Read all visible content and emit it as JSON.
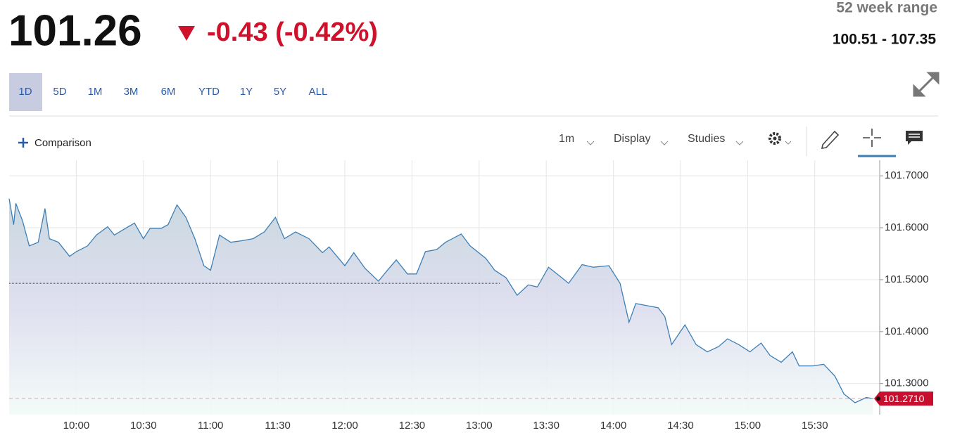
{
  "header": {
    "price": "101.26",
    "change": "-0.43 (-0.42%)",
    "range_label": "52 week range",
    "range": "100.51 - 107.35"
  },
  "tabs": [
    "1D",
    "5D",
    "1M",
    "3M",
    "6M",
    "YTD",
    "1Y",
    "5Y",
    "ALL"
  ],
  "selected_tab": 0,
  "toolbar": {
    "comparison": "Comparison",
    "interval": "1m",
    "display": "Display",
    "studies": "Studies"
  },
  "chart_data": {
    "type": "line",
    "x": [
      "09:30",
      "09:32",
      "09:33",
      "09:36",
      "09:39",
      "09:43",
      "09:46",
      "09:48",
      "09:52",
      "09:57",
      "10:00",
      "10:05",
      "10:09",
      "10:14",
      "10:17",
      "10:22",
      "10:26",
      "10:30",
      "10:33",
      "10:38",
      "10:41",
      "10:45",
      "10:49",
      "10:53",
      "10:57",
      "11:00",
      "11:04",
      "11:09",
      "11:14",
      "11:19",
      "11:24",
      "11:29",
      "11:33",
      "11:38",
      "11:44",
      "11:50",
      "11:53",
      "12:00",
      "12:04",
      "12:09",
      "12:15",
      "12:19",
      "12:23",
      "12:28",
      "12:32",
      "12:36",
      "12:41",
      "12:45",
      "12:52",
      "12:56",
      "13:03",
      "13:07",
      "13:12",
      "13:17",
      "13:22",
      "13:26",
      "13:31",
      "13:36",
      "13:40",
      "13:46",
      "13:51",
      "13:58",
      "14:03",
      "14:07",
      "14:10",
      "14:15",
      "14:20",
      "14:23",
      "14:26",
      "14:32",
      "14:37",
      "14:42",
      "14:47",
      "14:51",
      "14:56",
      "15:01",
      "15:06",
      "15:10",
      "15:15",
      "15:20",
      "15:23",
      "15:29",
      "15:34",
      "15:39",
      "15:43",
      "15:48",
      "15:53",
      "15:56"
    ],
    "values": [
      101.656,
      101.606,
      101.647,
      101.613,
      101.565,
      101.572,
      101.637,
      101.579,
      101.572,
      101.545,
      101.554,
      101.565,
      101.586,
      101.602,
      101.586,
      101.599,
      101.609,
      101.579,
      101.599,
      101.599,
      101.606,
      101.644,
      101.62,
      101.579,
      101.527,
      101.518,
      101.586,
      101.572,
      101.575,
      101.579,
      101.592,
      101.62,
      101.579,
      101.592,
      101.579,
      101.552,
      101.563,
      101.527,
      101.552,
      101.522,
      101.497,
      101.518,
      101.538,
      101.511,
      101.511,
      101.554,
      101.558,
      101.572,
      101.588,
      101.565,
      101.541,
      101.518,
      101.504,
      101.47,
      101.49,
      101.486,
      101.524,
      101.507,
      101.493,
      101.529,
      101.524,
      101.527,
      101.493,
      101.418,
      101.454,
      101.45,
      101.446,
      101.429,
      101.375,
      101.413,
      101.375,
      101.361,
      101.371,
      101.386,
      101.375,
      101.361,
      101.378,
      101.354,
      101.341,
      101.361,
      101.334,
      101.334,
      101.337,
      101.314,
      101.28,
      101.263,
      101.273,
      101.271
    ],
    "color": "#3d7fb5",
    "xlim": [
      "09:30",
      "15:59"
    ],
    "xticks": [
      "10:00",
      "10:30",
      "11:00",
      "11:30",
      "12:00",
      "12:30",
      "13:00",
      "13:30",
      "14:00",
      "14:30",
      "15:00",
      "15:30"
    ],
    "ylim": [
      101.24,
      101.73
    ],
    "yticks": [
      {
        "value": 101.3,
        "label": "101.3000"
      },
      {
        "value": 101.4,
        "label": "101.4000"
      },
      {
        "value": 101.5,
        "label": "101.5000"
      },
      {
        "value": 101.6,
        "label": "101.6000"
      },
      {
        "value": 101.7,
        "label": "101.7000"
      }
    ],
    "reference_line": 101.493,
    "last_price": {
      "value": 101.271,
      "label": "101.2710"
    },
    "grid": true
  }
}
